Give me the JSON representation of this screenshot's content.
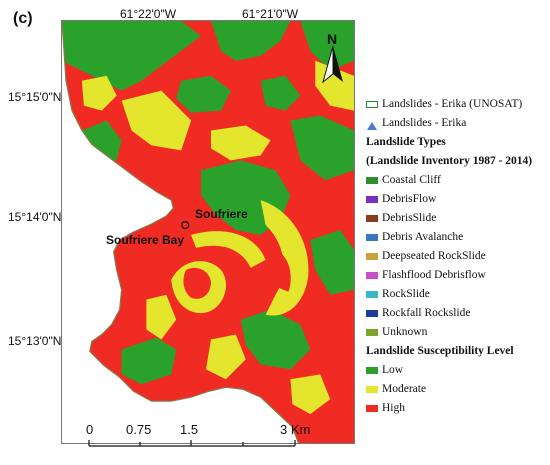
{
  "figure": {
    "panel_label": "(c)"
  },
  "coordinates": {
    "top": [
      "61°22'0\"W",
      "61°21'0\"W"
    ],
    "left": [
      "15°15'0\"N",
      "15°14'0\"N",
      "15°13'0\"N"
    ]
  },
  "map": {
    "place_labels": {
      "soufriere": "Soufriere",
      "soufriere_bay": "Soufriere Bay"
    },
    "north_arrow_letter": "N",
    "colors": {
      "low": "#2aa12a",
      "moderate": "#e4e62e",
      "high": "#ef2b24",
      "background_white": "#ffffff"
    }
  },
  "scale_bar": {
    "labels": [
      "0",
      "0.75",
      "1.5",
      "3 Km"
    ]
  },
  "legend": {
    "point_items": [
      {
        "label": "Landslides - Erika (UNOSAT)",
        "symbol": "outlined-rectangle",
        "color": "#2a8a2a"
      },
      {
        "label": "Landslides - Erika",
        "symbol": "triangle",
        "color": "#4a7bd4"
      }
    ],
    "types_title": "Landslide Types",
    "types_subtitle": "(Landslide Inventory 1987 - 2014)",
    "types": [
      {
        "label": "Coastal Cliff",
        "color": "#2c8f2c"
      },
      {
        "label": "DebrisFlow",
        "color": "#7b2fbf"
      },
      {
        "label": "DebrisSlide",
        "color": "#8a3b1c"
      },
      {
        "label": "Debris Avalanche",
        "color": "#3b78c2"
      },
      {
        "label": "Deepseated RockSlide",
        "color": "#c9a23b"
      },
      {
        "label": "Flashflood Debrisflow",
        "color": "#c94fc9"
      },
      {
        "label": "RockSlide",
        "color": "#3ab7c9"
      },
      {
        "label": "Rockfall Rockslide",
        "color": "#1f3c9c"
      },
      {
        "label": "Unknown",
        "color": "#7ba52a"
      }
    ],
    "susceptibility_title": "Landslide Susceptibility Level",
    "susceptibility": [
      {
        "label": "Low",
        "color": "#2aa12a"
      },
      {
        "label": "Moderate",
        "color": "#e4e62e"
      },
      {
        "label": "High",
        "color": "#ef2b24"
      }
    ]
  }
}
